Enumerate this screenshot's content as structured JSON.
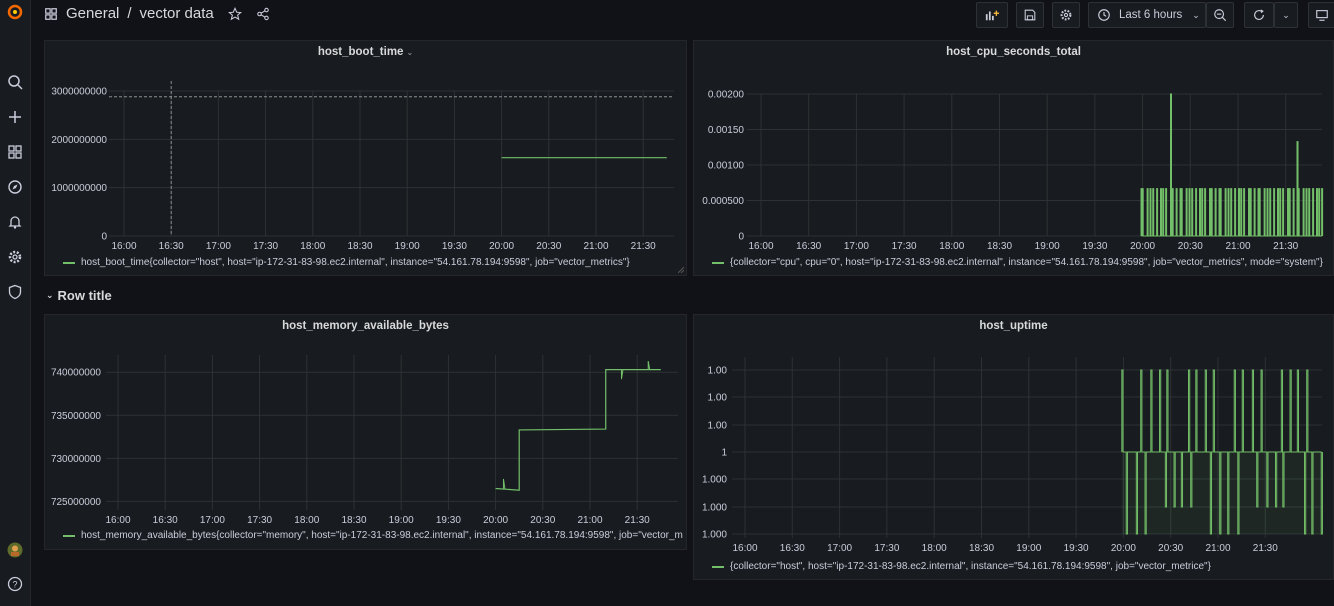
{
  "breadcrumb": {
    "folder": "General",
    "separator": "/",
    "dashboard": "vector data"
  },
  "toolbar": {
    "time_range": "Last 6 hours"
  },
  "row": {
    "title": "Row title"
  },
  "colors": {
    "series": "#73bf69",
    "background": "#111217",
    "panel": "#181b1f",
    "grid": "#2c3235"
  },
  "panels": [
    {
      "id": "boot",
      "title": "host_boot_time",
      "legend": "host_boot_time{collector=\"host\", host=\"ip-172-31-83-98.ec2.internal\", instance=\"54.161.78.194:9598\", job=\"vector_metrics\"}",
      "chart_data": {
        "type": "line",
        "x_ticks": [
          "16:00",
          "16:30",
          "17:00",
          "17:30",
          "18:00",
          "18:30",
          "19:00",
          "19:30",
          "20:00",
          "20:30",
          "21:00",
          "21:30"
        ],
        "y_ticks": [
          "3000000000",
          "2000000000",
          "1000000000",
          "0"
        ],
        "ylim": [
          0,
          3000000000
        ],
        "threshold": 2880000000,
        "series": [
          {
            "name": "host_boot_time",
            "x": [
              "20:00",
              "21:45"
            ],
            "y": [
              1620000000,
              1620000000
            ]
          }
        ]
      }
    },
    {
      "id": "cpu",
      "title": "host_cpu_seconds_total",
      "legend": "{collector=\"cpu\", cpu=\"0\", host=\"ip-172-31-83-98.ec2.internal\", instance=\"54.161.78.194:9598\", job=\"vector_metrics\", mode=\"system\"}",
      "chart_data": {
        "type": "line",
        "x_ticks": [
          "16:00",
          "16:30",
          "17:00",
          "17:30",
          "18:00",
          "18:30",
          "19:00",
          "19:30",
          "20:00",
          "20:30",
          "21:00",
          "21:30"
        ],
        "y_ticks": [
          "0.00200",
          "0.00150",
          "0.00100",
          "0.000500",
          "0"
        ],
        "ylim": [
          0,
          0.002
        ],
        "series": [
          {
            "name": "cpu system",
            "pattern": "spiky",
            "base": 0.000667,
            "peaks": [
              0.002,
              0.00133,
              0.00133
            ]
          }
        ]
      }
    },
    {
      "id": "mem",
      "title": "host_memory_available_bytes",
      "legend": "host_memory_available_bytes{collector=\"memory\", host=\"ip-172-31-83-98.ec2.internal\", instance=\"54.161.78.194:9598\", job=\"vector_metr",
      "chart_data": {
        "type": "line",
        "x_ticks": [
          "16:00",
          "16:30",
          "17:00",
          "17:30",
          "18:00",
          "18:30",
          "19:00",
          "19:30",
          "20:00",
          "20:30",
          "21:00",
          "21:30"
        ],
        "y_ticks": [
          "740000000",
          "735000000",
          "730000000",
          "725000000"
        ],
        "ylim": [
          724000000,
          742000000
        ],
        "series": [
          {
            "name": "memory available",
            "x": [
              "20:00",
              "20:15",
              "20:15",
              "21:10",
              "21:10",
              "21:45"
            ],
            "y": [
              726500000,
              726300000,
              733300000,
              733400000,
              740300000,
              740300000
            ]
          }
        ]
      }
    },
    {
      "id": "uptime",
      "title": "host_uptime",
      "legend": "{collector=\"host\", host=\"ip-172-31-83-98.ec2.internal\", instance=\"54.161.78.194:9598\", job=\"vector_metrice\"}",
      "chart_data": {
        "type": "line",
        "x_ticks": [
          "16:00",
          "16:30",
          "17:00",
          "17:30",
          "18:00",
          "18:30",
          "19:00",
          "19:30",
          "20:00",
          "20:30",
          "21:00",
          "21:30"
        ],
        "y_ticks": [
          "1.00",
          "1.00",
          "1.00",
          "1",
          "1.000",
          "1.000",
          "1.000"
        ],
        "series": [
          {
            "name": "uptime",
            "pattern": "square"
          }
        ]
      }
    }
  ]
}
